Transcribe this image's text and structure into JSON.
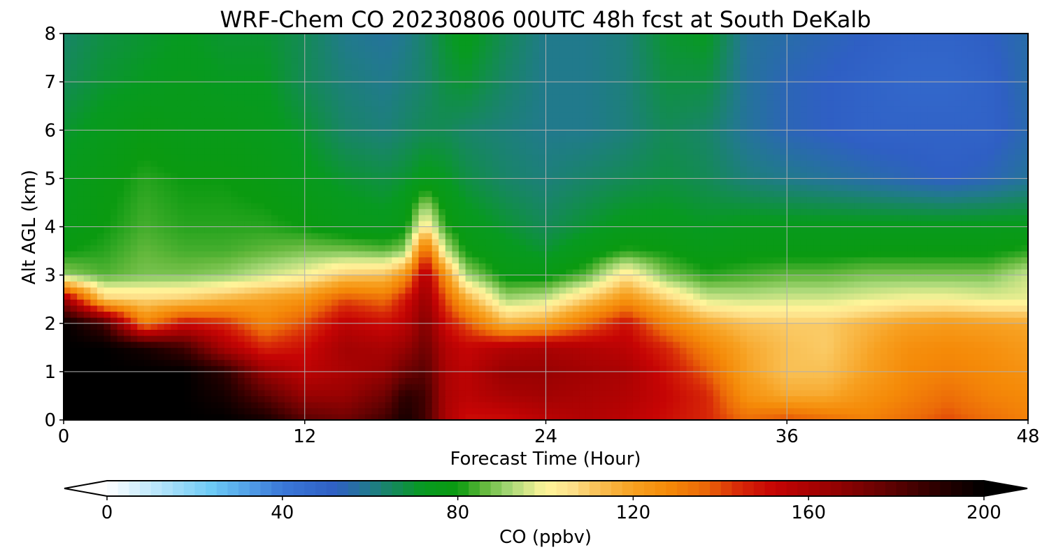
{
  "chart_data": {
    "type": "heatmap",
    "title": "WRF-Chem CO  20230806 00UTC 48h fcst at South DeKalb",
    "xlabel": "Forecast Time (Hour)",
    "ylabel": "Alt AGL (km)",
    "xlim": [
      0,
      48
    ],
    "ylim": [
      0,
      8
    ],
    "xticks": [
      0,
      12,
      24,
      36,
      48
    ],
    "yticks": [
      0,
      1,
      2,
      3,
      4,
      5,
      6,
      7,
      8
    ],
    "grid": true,
    "x": [
      0,
      2,
      4,
      6,
      8,
      10,
      12,
      14,
      16,
      17,
      18,
      19,
      20,
      22,
      24,
      26,
      28,
      30,
      32,
      34,
      36,
      38,
      40,
      42,
      44,
      46,
      48
    ],
    "y": [
      0,
      0.5,
      1,
      1.5,
      2,
      2.5,
      3,
      3.5,
      4,
      5,
      6,
      7,
      8
    ],
    "z": [
      [
        200,
        200,
        200,
        200,
        200,
        195,
        180,
        175,
        185,
        195,
        185,
        160,
        150,
        150,
        155,
        158,
        155,
        150,
        145,
        135,
        140,
        135,
        130,
        135,
        140,
        135,
        130
      ],
      [
        200,
        200,
        200,
        200,
        195,
        180,
        165,
        165,
        175,
        190,
        185,
        160,
        155,
        160,
        162,
        160,
        158,
        152,
        145,
        125,
        118,
        118,
        125,
        130,
        135,
        130,
        128
      ],
      [
        200,
        200,
        200,
        200,
        190,
        165,
        155,
        160,
        165,
        175,
        180,
        160,
        155,
        165,
        165,
        162,
        160,
        150,
        138,
        120,
        112,
        112,
        120,
        128,
        130,
        128,
        125
      ],
      [
        200,
        200,
        195,
        185,
        160,
        145,
        150,
        162,
        160,
        165,
        175,
        158,
        152,
        158,
        160,
        158,
        155,
        145,
        130,
        118,
        112,
        110,
        118,
        126,
        128,
        126,
        122
      ],
      [
        200,
        185,
        130,
        150,
        145,
        130,
        140,
        155,
        150,
        155,
        170,
        150,
        140,
        115,
        120,
        135,
        150,
        130,
        118,
        112,
        110,
        110,
        115,
        120,
        122,
        120,
        118
      ],
      [
        165,
        110,
        108,
        110,
        115,
        120,
        125,
        140,
        135,
        148,
        165,
        140,
        118,
        92,
        95,
        110,
        125,
        110,
        96,
        95,
        96,
        96,
        98,
        100,
        100,
        98,
        98
      ],
      [
        90,
        85,
        88,
        88,
        90,
        95,
        100,
        110,
        112,
        125,
        160,
        125,
        92,
        78,
        78,
        85,
        105,
        88,
        82,
        84,
        86,
        86,
        88,
        88,
        88,
        88,
        95
      ],
      [
        80,
        82,
        86,
        84,
        84,
        86,
        88,
        88,
        86,
        90,
        140,
        95,
        80,
        74,
        70,
        76,
        82,
        80,
        76,
        78,
        78,
        78,
        79,
        79,
        79,
        79,
        82
      ],
      [
        76,
        80,
        84,
        82,
        82,
        82,
        80,
        76,
        74,
        78,
        105,
        82,
        75,
        70,
        66,
        70,
        74,
        74,
        72,
        74,
        74,
        74,
        74,
        74,
        74,
        74,
        74
      ],
      [
        74,
        78,
        82,
        80,
        80,
        78,
        74,
        70,
        68,
        70,
        74,
        72,
        68,
        64,
        62,
        64,
        66,
        68,
        66,
        62,
        60,
        58,
        56,
        54,
        52,
        54,
        58
      ],
      [
        70,
        74,
        78,
        76,
        76,
        74,
        70,
        64,
        62,
        64,
        66,
        66,
        64,
        62,
        60,
        60,
        62,
        66,
        64,
        58,
        54,
        52,
        50,
        50,
        50,
        50,
        55
      ],
      [
        66,
        70,
        72,
        74,
        72,
        72,
        66,
        62,
        60,
        62,
        64,
        68,
        70,
        64,
        60,
        60,
        62,
        68,
        68,
        58,
        54,
        52,
        50,
        48,
        48,
        50,
        56
      ],
      [
        64,
        68,
        70,
        72,
        70,
        70,
        66,
        60,
        58,
        60,
        64,
        70,
        74,
        66,
        60,
        60,
        62,
        70,
        72,
        58,
        56,
        54,
        52,
        50,
        50,
        52,
        56
      ]
    ]
  },
  "colorbar": {
    "label": "CO  (ppbv)",
    "min": 0,
    "max": 200,
    "ticks": [
      0,
      40,
      80,
      120,
      160,
      200
    ],
    "extend": "both",
    "colors": [
      [
        0,
        "#ffffff"
      ],
      [
        24,
        "#6ccaf6"
      ],
      [
        40,
        "#3a78d8"
      ],
      [
        52,
        "#2f5fc4"
      ],
      [
        60,
        "#217a8c"
      ],
      [
        72,
        "#079a20"
      ],
      [
        80,
        "#0a9a10"
      ],
      [
        86,
        "#63b83c"
      ],
      [
        92,
        "#a9d878"
      ],
      [
        100,
        "#fff59a"
      ],
      [
        106,
        "#fde08a"
      ],
      [
        112,
        "#f9c054"
      ],
      [
        120,
        "#f7a020"
      ],
      [
        128,
        "#f58a08"
      ],
      [
        136,
        "#ec6a08"
      ],
      [
        144,
        "#d82a08"
      ],
      [
        152,
        "#c60404"
      ],
      [
        164,
        "#9c0202"
      ],
      [
        176,
        "#6a0202"
      ],
      [
        188,
        "#320000"
      ],
      [
        200,
        "#000000"
      ]
    ]
  }
}
